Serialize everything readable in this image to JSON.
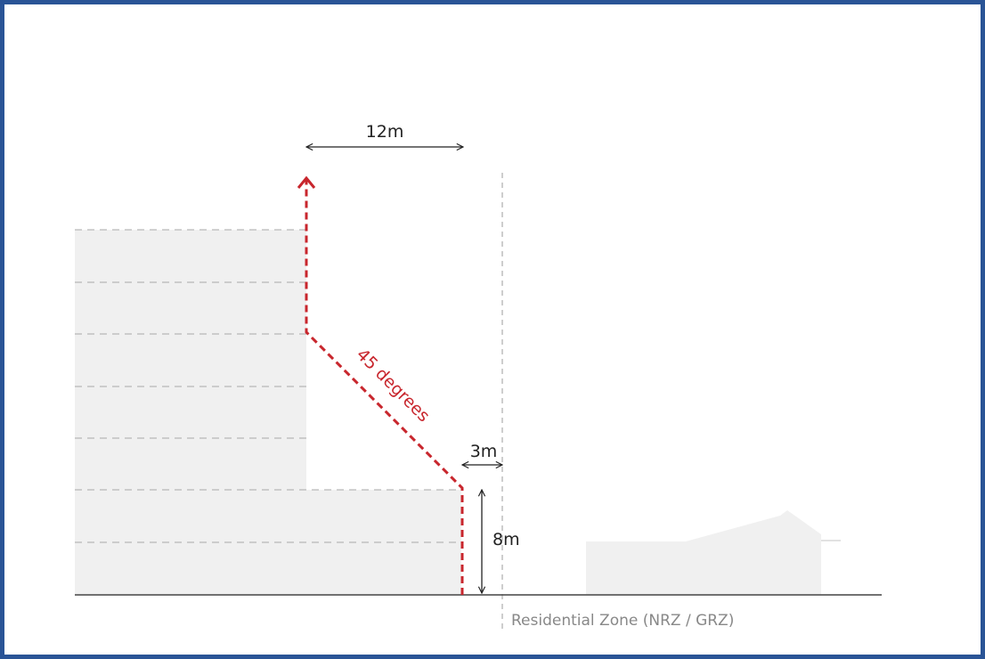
{
  "diagram": {
    "labels": {
      "width_12m": "12m",
      "angle": "45 degrees",
      "setback_3m": "3m",
      "height_8m": "8m",
      "zone": "Residential Zone (NRZ / GRZ)"
    },
    "colors": {
      "frame": "#2a5496",
      "envelope": "#c8262d",
      "building": "#f0f0f0",
      "floor_lines": "#a8a8a8",
      "ground": "#444444",
      "zone_text": "#888888",
      "dimension": "#222222"
    }
  }
}
